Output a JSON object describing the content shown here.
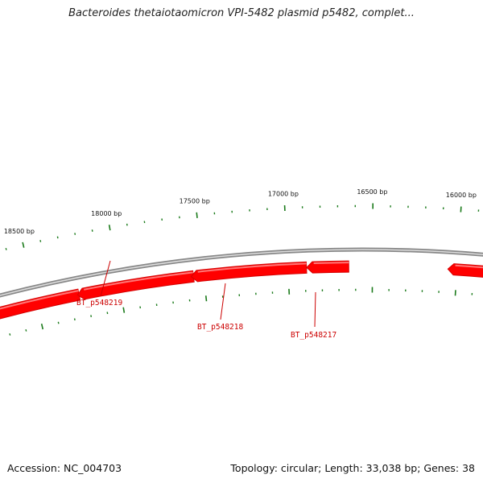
{
  "title": "Bacteroides thetaiotaomicron VPI-5482 plasmid p5482, complet...",
  "footer": {
    "accession": "Accession: NC_004703",
    "summary": "Topology: circular; Length: 33,038 bp; Genes: 38"
  },
  "colors": {
    "gene": "#ff0000",
    "gene_highlight": "#ff7777",
    "gene_dark": "#d40000",
    "backbone": "#888888",
    "tick": "#1a7a1a",
    "label": "#cc0000"
  },
  "map": {
    "visible_range_bp": [
      15800,
      18800
    ],
    "tick_labels": [
      {
        "bp": 18500,
        "text": "18500 bp"
      },
      {
        "bp": 18000,
        "text": "18000 bp"
      },
      {
        "bp": 17500,
        "text": "17500 bp"
      },
      {
        "bp": 17000,
        "text": "17000 bp"
      },
      {
        "bp": 16500,
        "text": "16500 bp"
      },
      {
        "bp": 16000,
        "text": "16000 bp"
      }
    ],
    "genes": [
      {
        "name": "BT_p548219",
        "strand": "reverse",
        "label": true
      },
      {
        "name": "BT_p548218",
        "strand": "reverse",
        "label": true
      },
      {
        "name": "BT_p548217",
        "strand": "reverse",
        "label": true
      },
      {
        "name": "",
        "strand": "reverse",
        "label": false
      },
      {
        "name": "",
        "strand": "reverse",
        "label": false
      }
    ]
  }
}
